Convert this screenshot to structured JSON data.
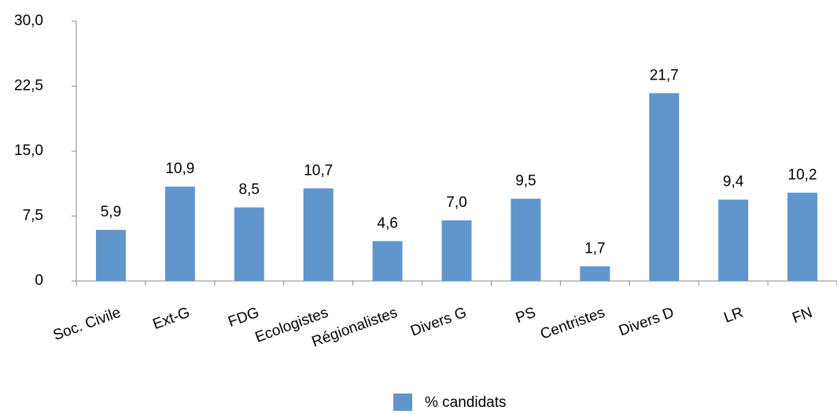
{
  "chart_data": {
    "type": "bar",
    "categories": [
      "Soc. Civile",
      "Ext-G",
      "FDG",
      "Ecologistes",
      "Régionalistes",
      "Divers G",
      "PS",
      "Centristes",
      "Divers D",
      "LR",
      "FN"
    ],
    "series": [
      {
        "name": "% candidats",
        "color": "#6096cc",
        "values": [
          5.9,
          10.9,
          8.5,
          10.7,
          4.6,
          7.0,
          9.5,
          1.7,
          21.7,
          9.4,
          10.2
        ],
        "value_labels": [
          "5,9",
          "10,9",
          "8,5",
          "10,7",
          "4,6",
          "7,0",
          "9,5",
          "1,7",
          "21,7",
          "9,4",
          "10,2"
        ]
      }
    ],
    "ylim": [
      0,
      30
    ],
    "yticks": [
      0,
      {
        "value": 7.5,
        "label": "7,5"
      },
      {
        "value": 15,
        "label": "15,0"
      },
      {
        "value": 22.5,
        "label": "22,5"
      },
      {
        "value": 30,
        "label": "30,0"
      }
    ],
    "legend": "bottom"
  }
}
